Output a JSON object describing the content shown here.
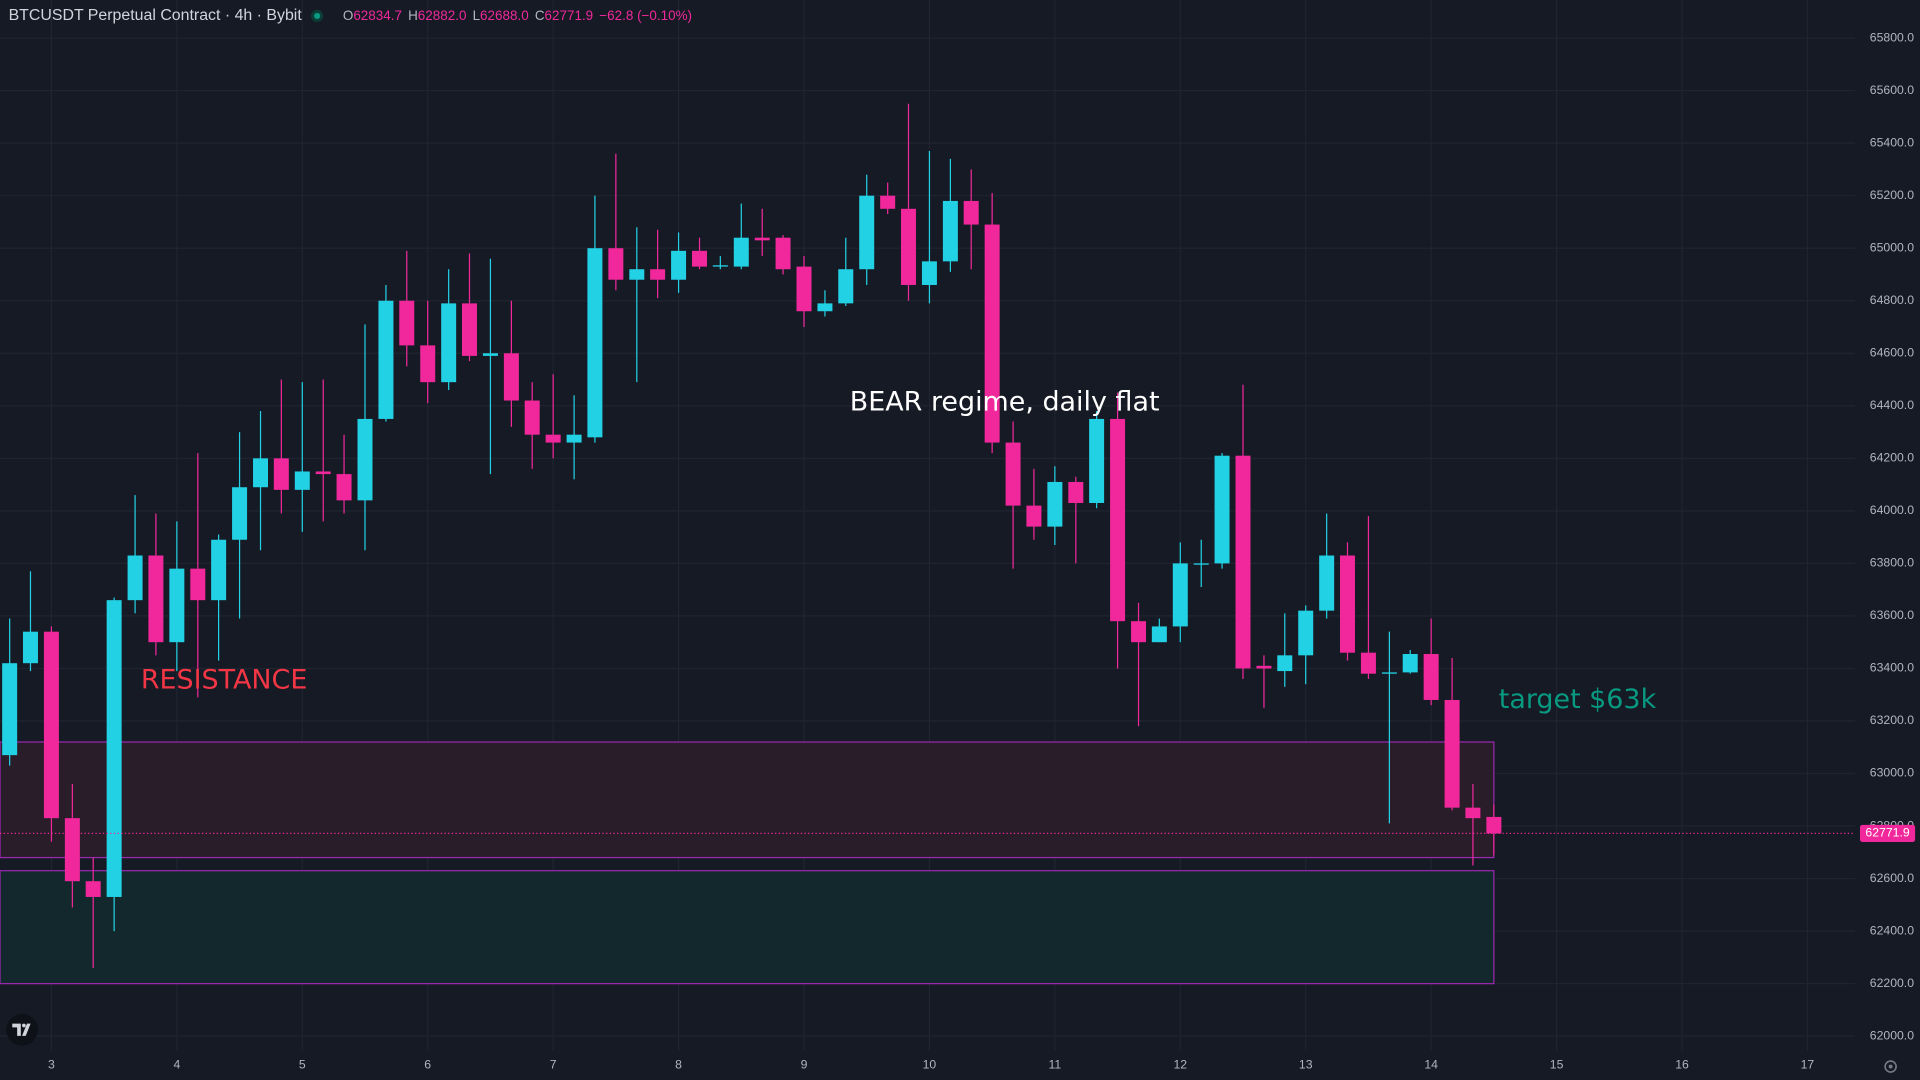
{
  "chart_data": {
    "type": "candlestick",
    "title": "BTCUSDT Perpetual Contract · 4h · Bybit",
    "ohlc_display": [
      {
        "label": "O",
        "value": "62834.7"
      },
      {
        "label": "H",
        "value": "62882.0"
      },
      {
        "label": "L",
        "value": "62688.0"
      },
      {
        "label": "C",
        "value": "62771.9"
      }
    ],
    "change": "−62.8 (−0.10%)",
    "up_color": "#22d1e4",
    "down_color": "#f0289b",
    "x": [
      2.667,
      2.833,
      3,
      3.167,
      3.333,
      3.5,
      3.667,
      3.833,
      4,
      4.167,
      4.333,
      4.5,
      4.667,
      4.833,
      5,
      5.167,
      5.333,
      5.5,
      5.667,
      5.833,
      6,
      6.167,
      6.333,
      6.5,
      6.667,
      6.833,
      7,
      7.167,
      7.333,
      7.5,
      7.667,
      7.833,
      8,
      8.167,
      8.333,
      8.5,
      8.667,
      8.833,
      9,
      9.167,
      9.333,
      9.5,
      9.667,
      9.833,
      10,
      10.167,
      10.333,
      10.5,
      10.667,
      10.833,
      11,
      11.167,
      11.333,
      11.5,
      11.667,
      11.833,
      12,
      12.167,
      12.333,
      12.5,
      12.667,
      12.833,
      13,
      13.167,
      13.333,
      13.5,
      13.667,
      13.833,
      14,
      14.167,
      14.333,
      14.5
    ],
    "open": [
      63070,
      63420,
      63540,
      62830,
      62590,
      62530,
      63660,
      63830,
      63500,
      63780,
      63660,
      63890,
      64090,
      64200,
      64080,
      64150,
      64140,
      64040,
      64350,
      64800,
      64630,
      64490,
      64790,
      64590,
      64600,
      64420,
      64290,
      64260,
      64280,
      65000,
      64880,
      64920,
      64880,
      64990,
      64930,
      64930,
      65040,
      65040,
      64930,
      64760,
      64790,
      64920,
      65200,
      65150,
      64860,
      64950,
      65180,
      65090,
      64260,
      64020,
      63940,
      64110,
      64030,
      64350,
      63580,
      63500,
      63560,
      63795,
      63800,
      64210,
      63410,
      63390,
      63450,
      63620,
      63830,
      63460,
      63380,
      63385,
      63455,
      63280,
      62870,
      62834.7
    ],
    "high": [
      63590,
      63770,
      63560,
      62960,
      62680,
      63670,
      64060,
      63990,
      63960,
      64220,
      63910,
      64300,
      64380,
      64500,
      64490,
      64500,
      64290,
      64710,
      64860,
      64990,
      64800,
      64920,
      64980,
      64960,
      64800,
      64490,
      64520,
      64440,
      65200,
      65360,
      65080,
      65070,
      65060,
      65040,
      64970,
      65170,
      65150,
      65050,
      64970,
      64840,
      65040,
      65280,
      65250,
      65550,
      65370,
      65340,
      65300,
      65210,
      64340,
      64160,
      64170,
      64130,
      64380,
      64450,
      63650,
      63590,
      63880,
      63890,
      64220,
      64480,
      63450,
      63610,
      63640,
      63990,
      63880,
      63980,
      63540,
      63470,
      63590,
      63440,
      62960,
      62882
    ],
    "low": [
      63030,
      63390,
      62740,
      62490,
      62260,
      62400,
      63610,
      63450,
      63390,
      63290,
      63430,
      63590,
      63850,
      63990,
      63920,
      63960,
      63990,
      63850,
      64340,
      64550,
      64410,
      64460,
      64570,
      64140,
      64320,
      64160,
      64200,
      64120,
      64260,
      64840,
      64490,
      64810,
      64830,
      64920,
      64920,
      64920,
      64970,
      64900,
      64700,
      64740,
      64780,
      64860,
      65130,
      64800,
      64790,
      64910,
      64920,
      64220,
      63780,
      63890,
      63870,
      63800,
      64010,
      63400,
      63180,
      63500,
      63500,
      63710,
      63780,
      63360,
      63250,
      63330,
      63340,
      63590,
      63430,
      63360,
      62810,
      63380,
      63260,
      62860,
      62650,
      62688
    ],
    "close": [
      63420,
      63540,
      62830,
      62590,
      62530,
      63660,
      63830,
      63500,
      63780,
      63660,
      63890,
      64090,
      64200,
      64080,
      64150,
      64140,
      64040,
      64350,
      64800,
      64630,
      64490,
      64790,
      64590,
      64600,
      64420,
      64290,
      64260,
      64290,
      65000,
      64880,
      64920,
      64880,
      64990,
      64930,
      64935,
      65040,
      65030,
      64920,
      64760,
      64790,
      64920,
      65200,
      65150,
      64860,
      64950,
      65180,
      65090,
      64260,
      64020,
      63940,
      64110,
      64030,
      64350,
      63580,
      63500,
      63560,
      63800,
      63800,
      64210,
      63400,
      63400,
      63450,
      63620,
      63830,
      63460,
      63380,
      63385,
      63455,
      63280,
      62870,
      62830,
      62771.9
    ],
    "xlim": [
      2.59,
      17.38
    ],
    "xticks": [
      3,
      4,
      5,
      6,
      7,
      8,
      9,
      10,
      11,
      12,
      13,
      14,
      15,
      16,
      17
    ],
    "ylim": [
      61945,
      65945
    ],
    "yticks": [
      {
        "value": 62000,
        "label": "62000.0"
      },
      {
        "value": 62200,
        "label": "62200.0"
      },
      {
        "value": 62400,
        "label": "62400.0"
      },
      {
        "value": 62600,
        "label": "62600.0"
      },
      {
        "value": 62800,
        "label": "62800.0"
      },
      {
        "value": 63000,
        "label": "63000.0"
      },
      {
        "value": 63200,
        "label": "63200.0"
      },
      {
        "value": 63400,
        "label": "63400.0"
      },
      {
        "value": 63600,
        "label": "63600.0"
      },
      {
        "value": 63800,
        "label": "63800.0"
      },
      {
        "value": 64000,
        "label": "64000.0"
      },
      {
        "value": 64200,
        "label": "64200.0"
      },
      {
        "value": 64400,
        "label": "64400.0"
      },
      {
        "value": 64600,
        "label": "64600.0"
      },
      {
        "value": 64800,
        "label": "64800.0"
      },
      {
        "value": 65000,
        "label": "65000.0"
      },
      {
        "value": 65200,
        "label": "65200.0"
      },
      {
        "value": 65400,
        "label": "65400.0"
      },
      {
        "value": 65600,
        "label": "65600.0"
      },
      {
        "value": 65800,
        "label": "65800.0"
      }
    ],
    "grid": true,
    "zones": [
      {
        "low": 62680,
        "high": 63120,
        "x_end": 14.5,
        "fill": "#2a1d2a",
        "stroke": "#9c27b0"
      },
      {
        "low": 62200,
        "high": 62630,
        "x_end": 14.5,
        "fill": "#12282c",
        "stroke": "#9c27b0"
      }
    ],
    "annotations": [
      {
        "text": "RESISTANCE",
        "color": "#f23645"
      },
      {
        "text": "BEAR regime, daily flat",
        "color": "#ffffff"
      },
      {
        "text": "target $63k",
        "color": "#089981"
      }
    ]
  }
}
